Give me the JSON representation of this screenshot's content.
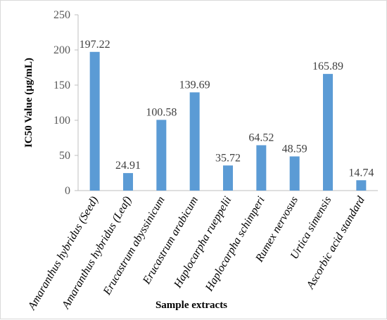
{
  "chart_data": {
    "type": "bar",
    "title": "",
    "xlabel": "Sample extracts",
    "ylabel": "IC50 Value (µg/mL)",
    "ylim": [
      0,
      250
    ],
    "yticks": [
      0,
      50,
      100,
      150,
      200,
      250
    ],
    "grid": false,
    "bar_color": "#5b9bd5",
    "categories": [
      "Amaranthus hybridus (Seed)",
      "Amaranthus hybridus (Leaf)",
      "Erucastrum abyssinicum",
      "Erucastrum arabicum",
      "Haplocarpha rueppelii",
      "Haplocarpha schimperi",
      "Rumex nervosus",
      "Urtica simensis",
      "Ascorbic acid standard"
    ],
    "values": [
      197.22,
      24.91,
      100.58,
      139.69,
      35.72,
      64.52,
      48.59,
      165.89,
      14.74
    ],
    "data_labels": [
      "197.22",
      "24.91",
      "100.58",
      "139.69",
      "35.72",
      "64.52",
      "48.59",
      "165.89",
      "14.74"
    ]
  }
}
